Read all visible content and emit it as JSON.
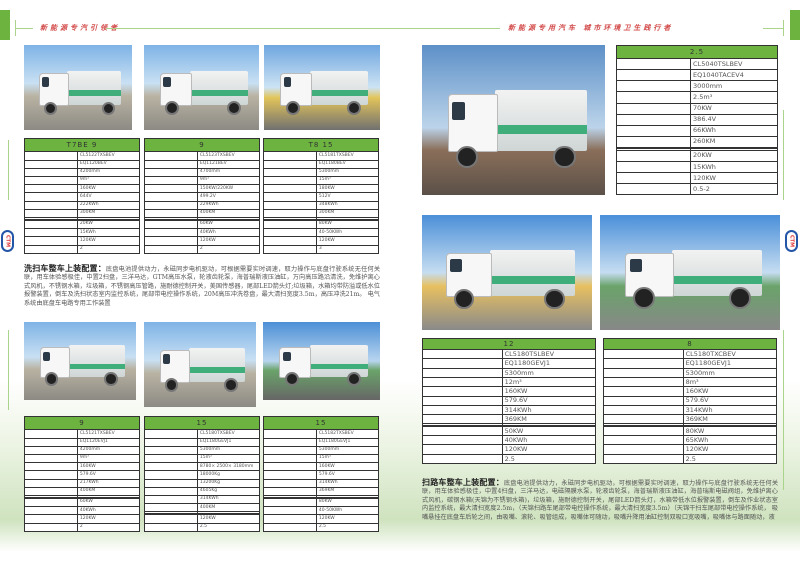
{
  "header": {
    "left_slogan": "新能源专汽引领者",
    "right_slogan": "新能源专用汽车 城市环境卫生践行者"
  },
  "logo": {
    "text": "CTM"
  },
  "colors": {
    "accent": "#6cb33f",
    "slogan": "#d34a4a",
    "logo_ring": "#2456a8"
  },
  "left_page": {
    "top_tables": [
      {
        "title": "T7BE 9",
        "values": [
          "CL5122TXSBEV",
          "EQ1120BEV",
          "4200mm",
          "9m³",
          "160KW",
          "644V",
          "222KWh",
          "300KM",
          "",
          "",
          "20KW",
          "15KWh",
          "120KW",
          "2"
        ]
      },
      {
        "title": "9",
        "values": [
          "CL5123TXSBEV",
          "EQ1121BEV",
          "4700mm",
          "9m³",
          "150KW/220KW",
          "499.2V",
          "229KWh",
          "400KM",
          "",
          "",
          "60KW",
          "40KWh",
          "120KW",
          "2"
        ]
      },
      {
        "title": "T8 15",
        "values": [
          "CL5181TXSBEV",
          "EQ1180BEV",
          "5300mm",
          "15m³",
          "180KW",
          "512V",
          "348KWh",
          "300KM",
          "",
          "",
          "80KW",
          "40-50KWh",
          "120KW",
          "3"
        ]
      }
    ],
    "wash_sweep": {
      "heading": "洗扫车整车上装配置：",
      "body": "底盘电池提供动力，永磁同步电机驱动，可根据需要实时调速，取力操作与底盘行驶系统无任何关联，用车体验感极佳，中置2扫盘，三洋马达，GTM高压水泵，轮液齿轮泵，海普瑞斯液压油缸，万向高压路沿清洗，免维护离心式风机，不锈钢水箱，垃圾箱，不锈钢高压管路，施耐德控制开关，美国传感器，尾部LED箭头灯;垃圾箱，水箱均带防溢或低水位报警装置，倒车及洗扫状态室内监控系统，尾部带电控操作系统，20M高压冲洗卷盘，最大清扫宽度3.5m，高压冲洗21m。  电气系统由底盘车电路专用工作装置"
    },
    "bottom_tables": [
      {
        "title": "9",
        "values": [
          "CL5121TXSBEV",
          "EQ1120EVJ1",
          "4200mm",
          "9m³",
          "160KW",
          "579.6V",
          "217KWh",
          "400KM",
          "",
          "",
          "60KW",
          "40KWh",
          "120KW",
          "2"
        ]
      },
      {
        "title": "15",
        "values": [
          "CL5180TXSBEV",
          "EQ1180GEVJ1",
          "5300mm",
          "15m³",
          "8780× 2500× 3180mm",
          "18000Kg",
          "13200Kg",
          "4605Kg",
          "314KWh",
          "400KM",
          "",
          "",
          "120KW",
          "2.5"
        ]
      },
      {
        "title": "15",
        "values": [
          "CL5182TXSBEV",
          "EQ1180GEVJ1",
          "5300mm",
          "15m³",
          "160KW",
          "579.6V",
          "314KWh",
          "369KM",
          "",
          "",
          "80KW",
          "40-50KWh",
          "120KW",
          "2.5"
        ]
      }
    ]
  },
  "right_page": {
    "top_table": {
      "title": "2.5",
      "values": [
        "CL5040TSLBEV",
        "EQ1040TACEV4",
        "3000mm",
        "2.5m³",
        "70KW",
        "386.4V",
        "66KWh",
        "260KM",
        "",
        "",
        "20KW",
        "15KWh",
        "120KW",
        "0.5-2"
      ]
    },
    "bottom_tables": [
      {
        "title": "12",
        "values": [
          "CL5180TSLBEV",
          "EQ1180GEVJ1",
          "5300mm",
          "12m³",
          "160KW",
          "579.6V",
          "314KWh",
          "369KM",
          "",
          "",
          "50KW",
          "40KWh",
          "120KW",
          "2.5"
        ]
      },
      {
        "title": "8",
        "values": [
          "CL5180TXCBEV",
          "EQ1180GEVJ1",
          "5300mm",
          "8m³",
          "160KW",
          "579.6V",
          "314KWh",
          "369KM",
          "",
          "",
          "80KW",
          "65KWh",
          "120KW",
          "2.5"
        ]
      }
    ],
    "sweeper": {
      "heading": "扫路车整车上装配置：",
      "body": "底盘电池提供动力，永磁同步电机驱动，可根据需要实时调速，取力操作与底盘行驶系统无任何关联，用车体验感极佳，中置4扫盘，三洋马达，电磁隔膜水泵，轮液齿轮泵，海普瑞斯液压油缸，海普瑞斯电磁阀组，免维护离心式风机，碳钢水箱(天锦为不锈钢水箱)，垃圾箱，施耐德控制开关，尾部LED箭头灯，水箱带低水位报警装置，倒车及作业状态室内监控系统，最大清扫宽度2.5m，（天锦扫路车尾部带电控操作系统，最大清扫宽度3.5m）（天锦干扫车尾部带电控操作系统， 吸嘴悬挂在底盘车后轮之间，由吸嘴、滚轮、吸管组成，吸嘴体可随动，吸嘴升降用油缸控制双吸口宽吸嘴，吸嘴体与路面随动，液"
    }
  }
}
